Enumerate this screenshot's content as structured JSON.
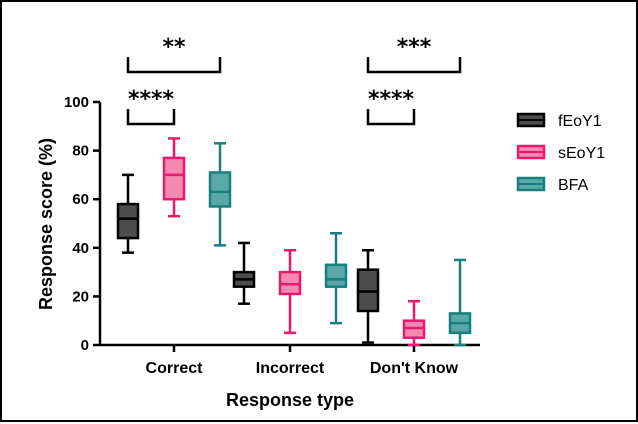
{
  "chart_data": {
    "type": "boxplot",
    "xlabel": "Response type",
    "ylabel": "Response score (%)",
    "ylim": [
      0,
      100
    ],
    "yticks": [
      0,
      20,
      40,
      60,
      80,
      100
    ],
    "categories": [
      "Correct",
      "Incorrect",
      "Don't Know"
    ],
    "legend_position": "right",
    "series": [
      {
        "name": "fEoY1",
        "color": "#4d4d4d",
        "stroke": "#000000",
        "boxes": [
          {
            "min": 38,
            "q1": 44,
            "median": 52,
            "q3": 58,
            "max": 70
          },
          {
            "min": 17,
            "q1": 24,
            "median": 27,
            "q3": 30,
            "max": 42
          },
          {
            "min": 1,
            "q1": 14,
            "median": 22,
            "q3": 31,
            "max": 39
          }
        ]
      },
      {
        "name": "sEoY1",
        "color": "#f48ab0",
        "stroke": "#e8196e",
        "boxes": [
          {
            "min": 53,
            "q1": 60,
            "median": 70,
            "q3": 77,
            "max": 85
          },
          {
            "min": 5,
            "q1": 21,
            "median": 25,
            "q3": 30,
            "max": 39
          },
          {
            "min": 0,
            "q1": 3,
            "median": 7,
            "q3": 10,
            "max": 18
          }
        ]
      },
      {
        "name": "BFA",
        "color": "#5aa8a8",
        "stroke": "#1a7f7f",
        "boxes": [
          {
            "min": 41,
            "q1": 57,
            "median": 63,
            "q3": 71,
            "max": 83
          },
          {
            "min": 9,
            "q1": 24,
            "median": 27,
            "q3": 33,
            "max": 46
          },
          {
            "min": 0,
            "q1": 5,
            "median": 9,
            "q3": 13,
            "max": 35
          }
        ]
      }
    ],
    "significance": [
      {
        "category": "Correct",
        "from": "fEoY1",
        "to": "sEoY1",
        "label": "****",
        "level": 1
      },
      {
        "category": "Correct",
        "from": "fEoY1",
        "to": "BFA",
        "label": "**",
        "level": 2
      },
      {
        "category": "Don't Know",
        "from": "fEoY1",
        "to": "sEoY1",
        "label": "****",
        "level": 1
      },
      {
        "category": "Don't Know",
        "from": "fEoY1",
        "to": "BFA",
        "label": "***",
        "level": 2
      }
    ]
  }
}
